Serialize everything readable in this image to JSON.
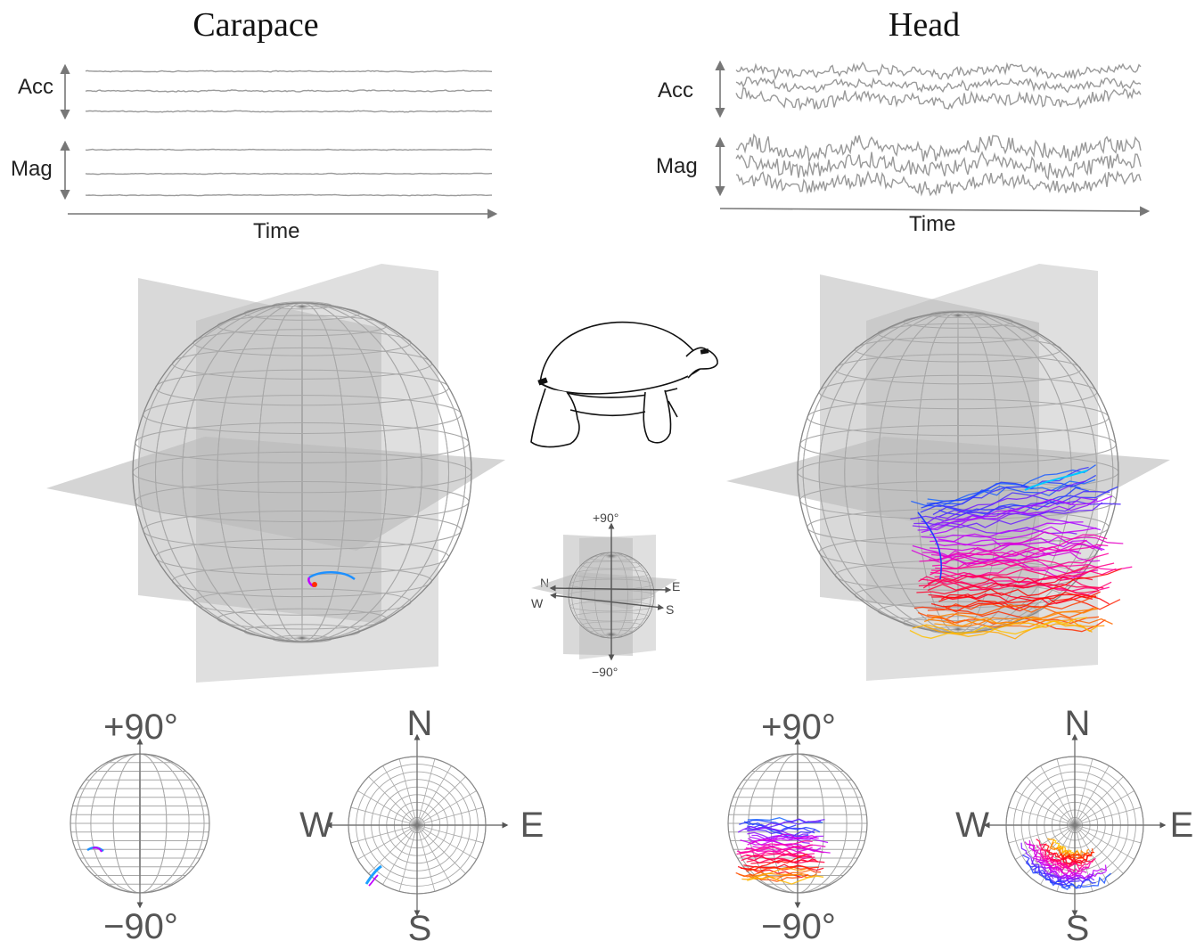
{
  "panels": {
    "carapace": {
      "title": "Carapace",
      "acc_label": "Acc",
      "mag_label": "Mag",
      "time_label": "Time",
      "side_view": {
        "top": "+90°",
        "bottom": "−90°"
      },
      "top_view": {
        "north": "N",
        "south": "S",
        "west": "W",
        "east": "E"
      }
    },
    "head": {
      "title": "Head",
      "acc_label": "Acc",
      "mag_label": "Mag",
      "time_label": "Time",
      "side_view": {
        "top": "+90°",
        "bottom": "−90°"
      },
      "top_view": {
        "north": "N",
        "south": "S",
        "west": "W",
        "east": "E"
      }
    }
  },
  "legend": {
    "top": "+90°",
    "bottom": "−90°",
    "north": "N",
    "south": "S",
    "west": "W",
    "east": "E"
  },
  "colors": {
    "trace": "#9a9a9a",
    "wireframe": "#a8a8a8",
    "plane": "#b9b9b9",
    "track_gradient": [
      "#00e5ff",
      "#1e3cff",
      "#c000ff",
      "#ff00a0",
      "#ff0000",
      "#ffd000"
    ]
  }
}
